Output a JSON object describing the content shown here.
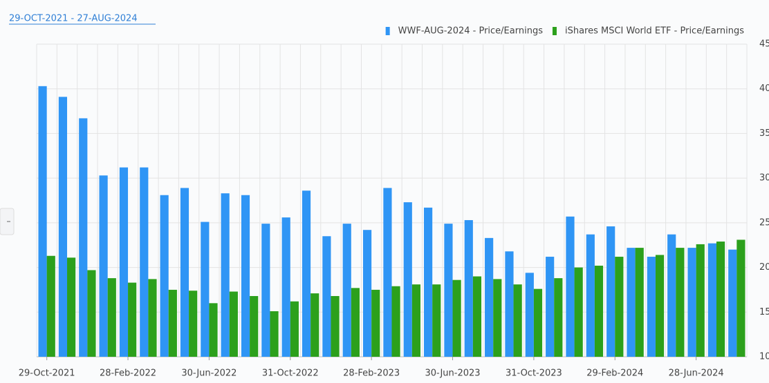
{
  "chart_data": {
    "type": "bar",
    "title": "29-OCT-2021 - 27-AUG-2024",
    "categories": [
      "29-Oct-2021",
      null,
      null,
      null,
      "28-Feb-2022",
      null,
      null,
      null,
      "30-Jun-2022",
      null,
      null,
      null,
      "31-Oct-2022",
      null,
      null,
      null,
      "28-Feb-2023",
      null,
      null,
      null,
      "30-Jun-2023",
      null,
      null,
      null,
      "31-Oct-2023",
      null,
      null,
      null,
      "29-Feb-2024",
      null,
      null,
      null,
      "28-Jun-2024",
      null,
      null
    ],
    "series": [
      {
        "name": "WWF-AUG-2024 - Price/Earnings",
        "color": "#2f95f5",
        "values": [
          40.3,
          39.1,
          36.7,
          30.3,
          31.2,
          31.2,
          28.1,
          28.9,
          25.1,
          28.3,
          28.1,
          24.9,
          25.6,
          28.6,
          23.5,
          24.9,
          24.2,
          28.9,
          27.3,
          26.7,
          24.9,
          25.3,
          23.3,
          21.8,
          19.4,
          21.2,
          25.7,
          23.7,
          24.6,
          22.2,
          21.2,
          23.7,
          22.2,
          22.7,
          22.0
        ]
      },
      {
        "name": "iShares MSCI World ETF - Price/Earnings",
        "color": "#2ca01c",
        "values": [
          21.3,
          21.1,
          19.7,
          18.8,
          18.3,
          18.7,
          17.5,
          17.4,
          16.0,
          17.3,
          16.8,
          15.1,
          16.2,
          17.1,
          16.8,
          17.7,
          17.5,
          17.9,
          18.1,
          18.1,
          18.6,
          19.0,
          18.7,
          18.1,
          17.6,
          18.8,
          20.0,
          20.2,
          21.2,
          22.2,
          21.4,
          22.2,
          22.6,
          22.9,
          23.1
        ]
      }
    ],
    "ylim": [
      10,
      45
    ],
    "yticks": [
      10,
      15,
      20,
      25,
      30,
      35,
      40,
      45
    ],
    "grid": true
  }
}
